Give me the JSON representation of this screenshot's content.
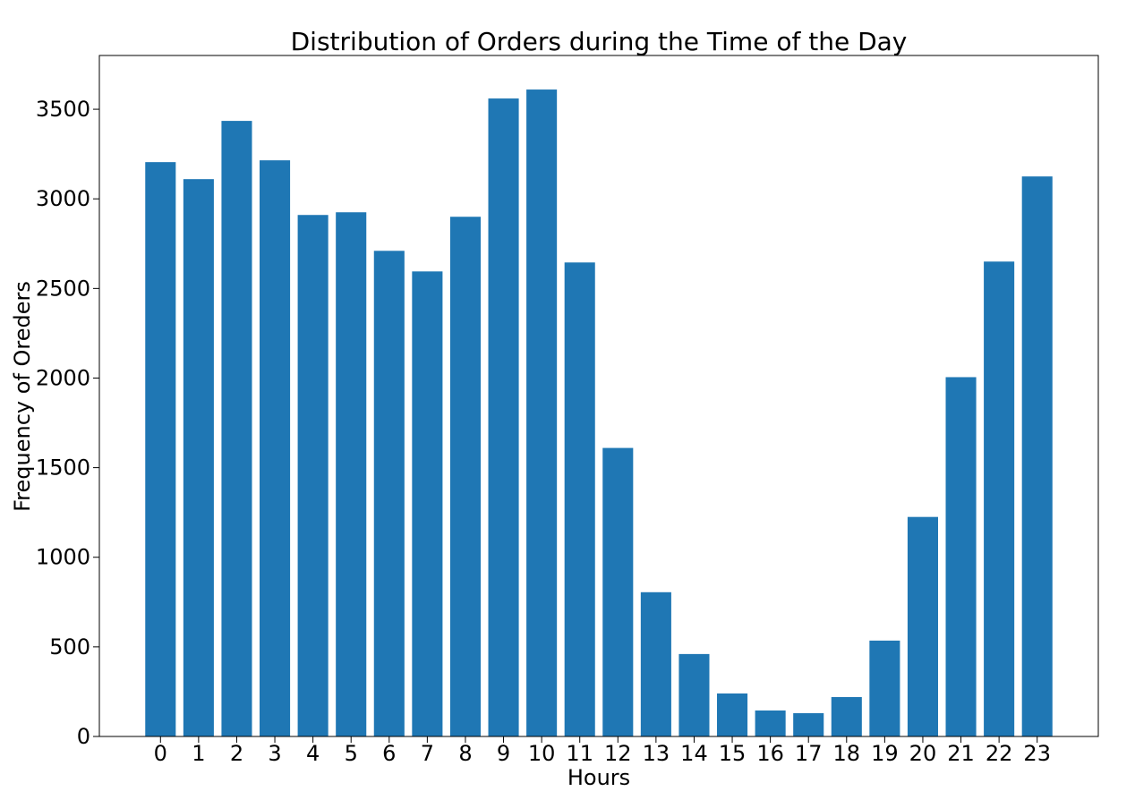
{
  "chart_data": {
    "type": "bar",
    "title": "Distribution of Orders during the Time of the Day",
    "xlabel": "Hours",
    "ylabel": "Frequency of Oreders",
    "categories": [
      "0",
      "1",
      "2",
      "3",
      "4",
      "5",
      "6",
      "7",
      "8",
      "9",
      "10",
      "11",
      "12",
      "13",
      "14",
      "15",
      "16",
      "17",
      "18",
      "19",
      "20",
      "21",
      "22",
      "23"
    ],
    "values": [
      3205,
      3110,
      3435,
      3215,
      2910,
      2925,
      2710,
      2595,
      2900,
      3560,
      3610,
      2645,
      1610,
      805,
      460,
      240,
      145,
      130,
      220,
      535,
      1225,
      2005,
      2650,
      3125
    ],
    "ylim": [
      0,
      3800
    ],
    "yticks": [
      0,
      500,
      1000,
      1500,
      2000,
      2500,
      3000,
      3500
    ],
    "bar_color": "#1f77b4",
    "grid": false,
    "legend": "none"
  }
}
